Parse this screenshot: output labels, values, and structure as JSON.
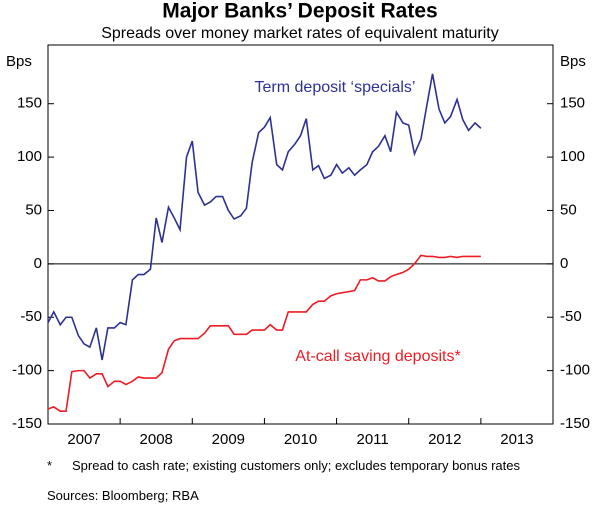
{
  "chart_data": {
    "type": "line",
    "title": "Major Banks’ Deposit Rates",
    "subtitle": "Spreads over money market rates of equivalent maturity",
    "y_label": "Bps",
    "y2_label": "Bps",
    "x": [
      2007.0,
      2007.08,
      2007.17,
      2007.25,
      2007.33,
      2007.42,
      2007.5,
      2007.58,
      2007.67,
      2007.75,
      2007.83,
      2007.92,
      2008.0,
      2008.08,
      2008.17,
      2008.25,
      2008.33,
      2008.42,
      2008.5,
      2008.58,
      2008.67,
      2008.75,
      2008.83,
      2008.92,
      2009.0,
      2009.08,
      2009.17,
      2009.25,
      2009.33,
      2009.42,
      2009.5,
      2009.58,
      2009.67,
      2009.75,
      2009.83,
      2009.92,
      2010.0,
      2010.08,
      2010.17,
      2010.25,
      2010.33,
      2010.42,
      2010.5,
      2010.58,
      2010.67,
      2010.75,
      2010.83,
      2010.92,
      2011.0,
      2011.08,
      2011.17,
      2011.25,
      2011.33,
      2011.42,
      2011.5,
      2011.58,
      2011.67,
      2011.75,
      2011.83,
      2011.92,
      2012.0,
      2012.08,
      2012.17,
      2012.25,
      2012.33,
      2012.42,
      2012.5,
      2012.58,
      2012.67,
      2012.75,
      2012.83,
      2012.92,
      2013.0
    ],
    "series": [
      {
        "name": "Term deposit ‘specials’",
        "color": "#2e3192",
        "values": [
          -55,
          -45,
          -57,
          -50,
          -50,
          -67,
          -75,
          -78,
          -60,
          -90,
          -60,
          -60,
          -55,
          -57,
          -15,
          -10,
          -10,
          -5,
          43,
          20,
          53,
          43,
          32,
          100,
          115,
          67,
          55,
          58,
          63,
          63,
          50,
          42,
          45,
          52,
          95,
          123,
          128,
          137,
          93,
          88,
          105,
          112,
          120,
          136,
          88,
          92,
          80,
          83,
          93,
          85,
          90,
          83,
          88,
          93,
          105,
          110,
          120,
          105,
          142,
          132,
          130,
          103,
          117,
          148,
          178,
          145,
          132,
          138,
          154,
          135,
          125,
          132,
          127
        ]
      },
      {
        "name": "At-call saving deposits*",
        "color": "#ed1c24",
        "values": [
          -136,
          -134,
          -138,
          -138,
          -101,
          -100,
          -100,
          -107,
          -103,
          -103,
          -115,
          -110,
          -110,
          -113,
          -110,
          -106,
          -107,
          -107,
          -107,
          -102,
          -80,
          -72,
          -70,
          -70,
          -70,
          -70,
          -65,
          -58,
          -58,
          -58,
          -58,
          -66,
          -66,
          -66,
          -62,
          -62,
          -62,
          -57,
          -62,
          -62,
          -45,
          -45,
          -45,
          -45,
          -38,
          -35,
          -35,
          -30,
          -28,
          -27,
          -26,
          -25,
          -15,
          -15,
          -13,
          -16,
          -16,
          -12,
          -10,
          -8,
          -5,
          0,
          8,
          7,
          7,
          6,
          6,
          7,
          6,
          7,
          7,
          7,
          7
        ]
      }
    ],
    "xlim": [
      2007,
      2014
    ],
    "x_tick_marks": [
      2007,
      2008,
      2009,
      2010,
      2011,
      2012,
      2013,
      2014
    ],
    "xticks": [
      {
        "value": 2007.5,
        "label": "2007"
      },
      {
        "value": 2008.5,
        "label": "2008"
      },
      {
        "value": 2009.5,
        "label": "2009"
      },
      {
        "value": 2010.5,
        "label": "2010"
      },
      {
        "value": 2011.5,
        "label": "2011"
      },
      {
        "value": 2012.5,
        "label": "2012"
      },
      {
        "value": 2013.5,
        "label": "2013"
      }
    ],
    "ylim": [
      -150,
      205
    ],
    "yticks": [
      -150,
      -100,
      -50,
      0,
      50,
      100,
      150
    ],
    "y2lim": [
      -150,
      205
    ],
    "y2ticks": [
      -150,
      -100,
      -50,
      0,
      50,
      100,
      150
    ],
    "zero_line": true,
    "footnote_marker": "*",
    "footnote": "Spread to cash rate; existing customers only; excludes temporary bonus rates",
    "sources": "Sources: Bloomberg; RBA"
  }
}
